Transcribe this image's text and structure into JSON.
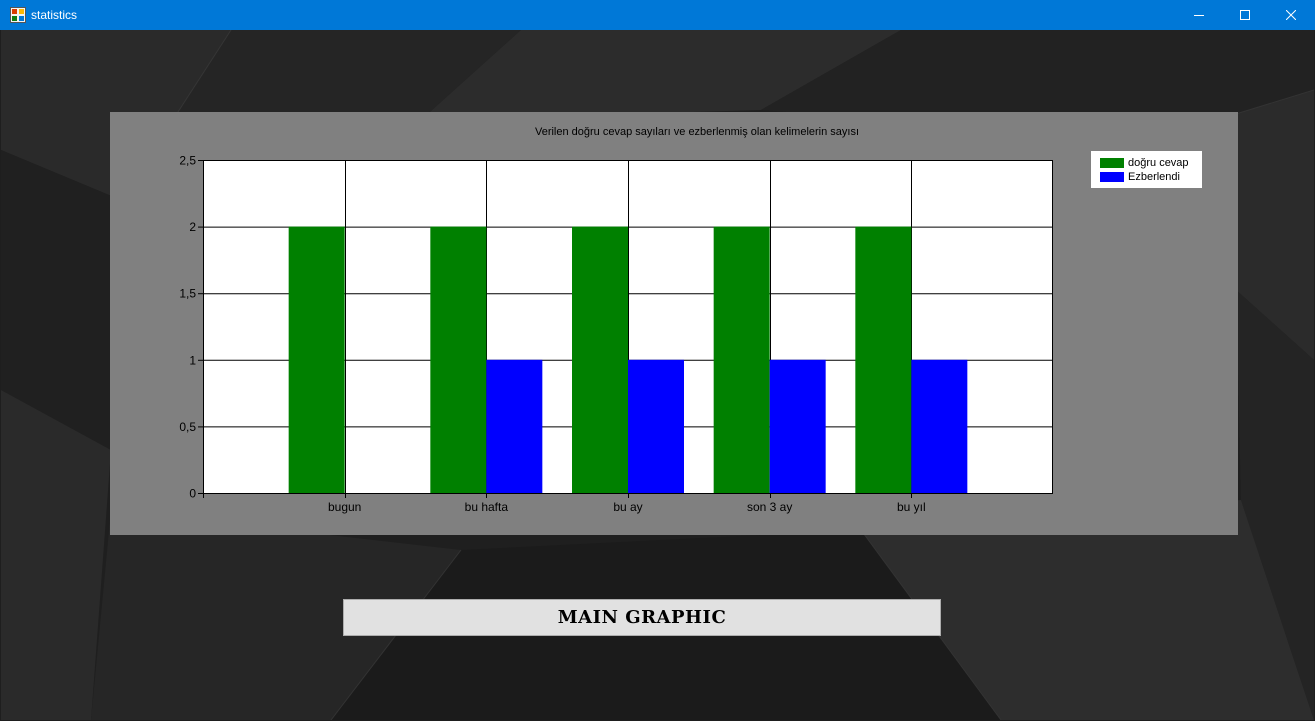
{
  "window": {
    "title": "statistics",
    "accent": "#0078d7",
    "controls": [
      "minimize-icon",
      "maximize-icon",
      "close-icon"
    ]
  },
  "chart_data": {
    "type": "bar",
    "title": "Verilen doğru cevap sayıları ve ezberlenmiş olan kelimelerin sayısı",
    "categories": [
      "bugun",
      "bu hafta",
      "bu ay",
      "son 3 ay",
      "bu yıl"
    ],
    "series": [
      {
        "name": "doğru cevap",
        "color": "#008000",
        "values": [
          2,
          2,
          2,
          2,
          2
        ]
      },
      {
        "name": "Ezberlendi",
        "color": "#0000ff",
        "values": [
          0,
          1,
          1,
          1,
          1
        ]
      }
    ],
    "y_ticks": [
      "0",
      "0,5",
      "1",
      "1,5",
      "2",
      "2,5"
    ],
    "ylim": [
      0,
      2.5
    ],
    "grid": true,
    "legend_position": "top-right"
  },
  "main_button": {
    "label": "MAIN GRAPHIC"
  }
}
